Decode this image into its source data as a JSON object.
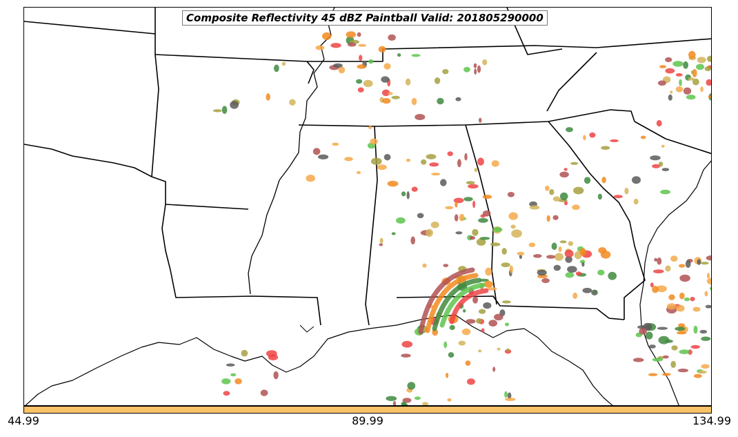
{
  "title": "Composite Reflectivity 45 dBZ Paintball Valid: 201805290000",
  "colorbar": {
    "color": "#f9c36a",
    "ticks": [
      "44.99",
      "89.99",
      "134.99"
    ]
  },
  "paintball_colors": [
    "#ef4444",
    "#5ec44d",
    "#f5a94a",
    "#b05252",
    "#5a5a5a",
    "#a6a040",
    "#3f8a3f",
    "#f28a1e",
    "#d4b45a"
  ]
}
